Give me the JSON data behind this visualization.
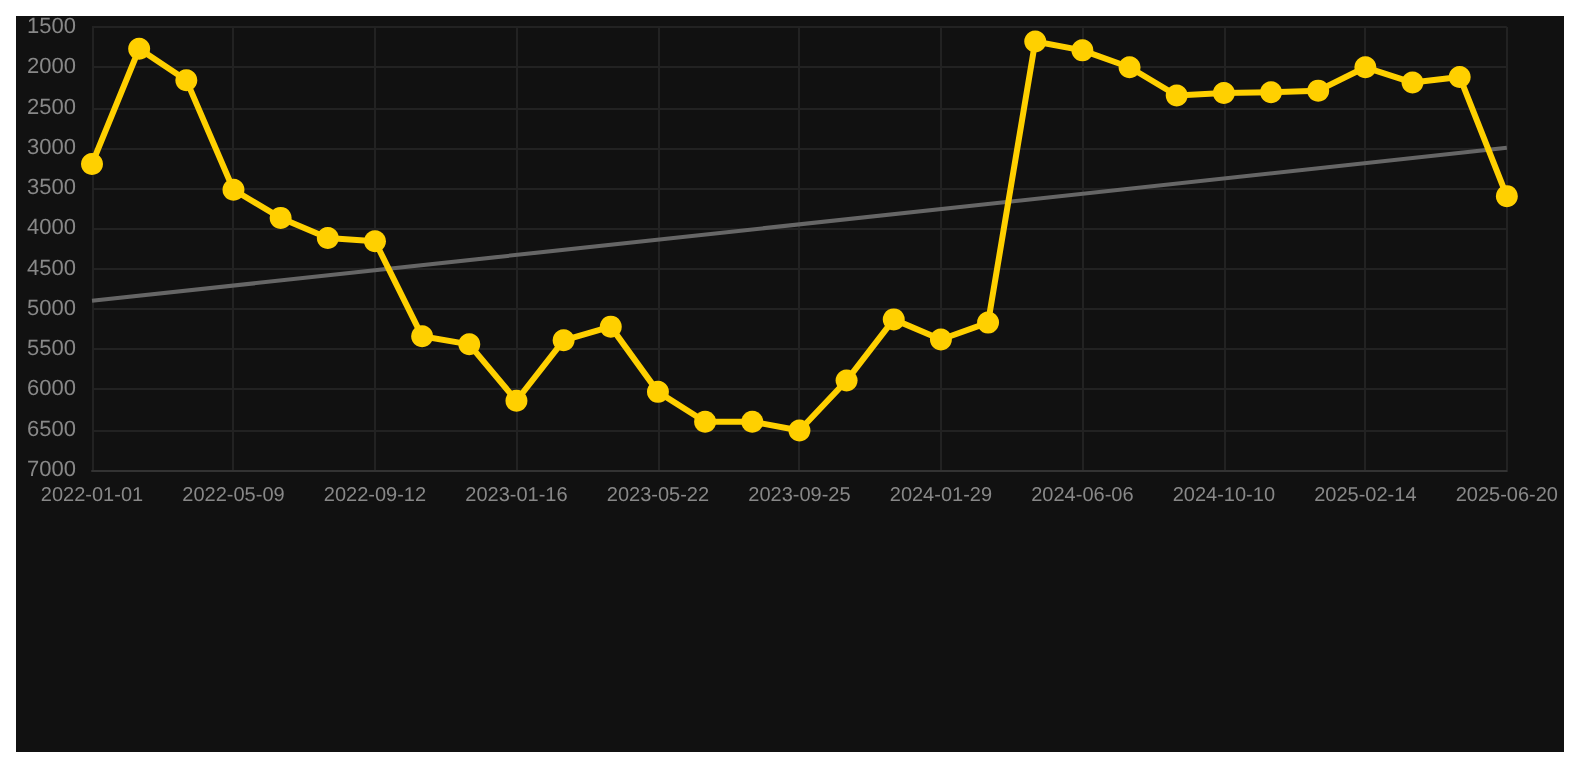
{
  "chart_data": {
    "type": "line",
    "categories": [
      "2022-01-01",
      null,
      null,
      "2022-05-09",
      null,
      null,
      "2022-09-12",
      null,
      null,
      "2023-01-16",
      null,
      null,
      "2023-05-22",
      null,
      null,
      "2023-09-25",
      null,
      null,
      "2024-01-29",
      null,
      null,
      "2024-06-06",
      null,
      null,
      "2024-10-10",
      null,
      null,
      "2025-02-14",
      null,
      null,
      "2025-06-20"
    ],
    "series": [
      {
        "color": "#ffd000",
        "marker": "circle",
        "values": [
          3200,
          1770,
          2160,
          3520,
          3870,
          4120,
          4160,
          5340,
          5440,
          6140,
          5390,
          5220,
          6030,
          6400,
          6400,
          6510,
          5890,
          5130,
          5380,
          5170,
          1680,
          1790,
          2000,
          2350,
          2320,
          2310,
          2290,
          2000,
          2190,
          2120,
          3600
        ]
      },
      {
        "type": "line",
        "color": "#666666",
        "marker": "none",
        "values": [
          4900,
          null,
          null,
          null,
          null,
          null,
          null,
          null,
          null,
          null,
          null,
          null,
          null,
          null,
          null,
          null,
          null,
          null,
          null,
          null,
          null,
          null,
          null,
          null,
          null,
          null,
          null,
          null,
          null,
          null,
          3000
        ]
      }
    ],
    "ylim": [
      7000,
      1500
    ],
    "yticks": [
      1500,
      2000,
      2500,
      3000,
      3500,
      4000,
      4500,
      5000,
      5500,
      6000,
      6500,
      7000
    ],
    "grid": true
  }
}
